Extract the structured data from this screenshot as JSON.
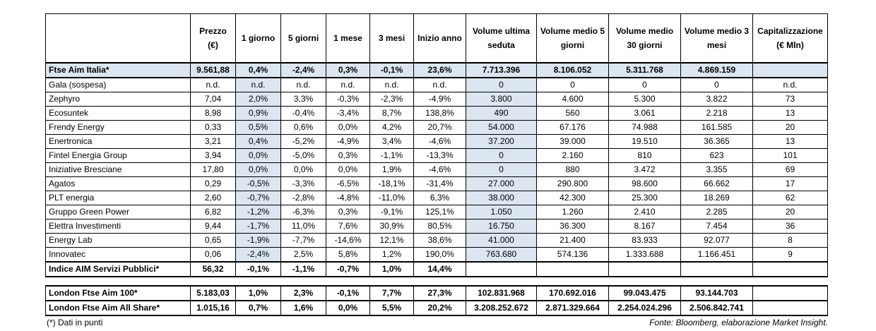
{
  "header": [
    "",
    "Prezzo (€)",
    "1 giorno",
    "5 giorni",
    "1 mese",
    "3 mesi",
    "Inizio anno",
    "Volume ultima seduta",
    "Volume medio 5 giorni",
    "Volume medio 30 giorni",
    "Volume medio 3 mesi",
    "Capitalizzazione (€ Mln)"
  ],
  "index_row": [
    "Ftse Aim Italia*",
    "9.561,88",
    "0,4%",
    "-2,4%",
    "0,3%",
    "-0,1%",
    "23,6%",
    "7.713.396",
    "8.106.052",
    "5.311.768",
    "4.869.159",
    ""
  ],
  "rows": [
    [
      "Gala (sospesa)",
      "n.d.",
      "n.d.",
      "n.d.",
      "n.d.",
      "n.d.",
      "n.d.",
      "0",
      "0",
      "0",
      "0",
      "n.d."
    ],
    [
      "Zephyro",
      "7,04",
      "2,0%",
      "3,3%",
      "-0,3%",
      "-2,3%",
      "-4,9%",
      "3.800",
      "4.600",
      "5.300",
      "3.822",
      "73"
    ],
    [
      "Ecosuntek",
      "8,98",
      "0,9%",
      "-0,4%",
      "-3,4%",
      "8,7%",
      "138,8%",
      "490",
      "560",
      "3.061",
      "2.218",
      "13"
    ],
    [
      "Frendy Energy",
      "0,33",
      "0,5%",
      "0,6%",
      "0,0%",
      "4,2%",
      "20,7%",
      "54.000",
      "67.176",
      "74.988",
      "161.585",
      "20"
    ],
    [
      "Enertronica",
      "3,21",
      "0,4%",
      "-5,2%",
      "-4,9%",
      "3,4%",
      "-4,6%",
      "37.200",
      "39.000",
      "19.510",
      "36.365",
      "13"
    ],
    [
      "Fintel Energia Group",
      "3,94",
      "0,0%",
      "-5,0%",
      "0,3%",
      "-1,1%",
      "-13,3%",
      "0",
      "2.160",
      "810",
      "623",
      "101"
    ],
    [
      "Iniziative Bresciane",
      "17,80",
      "0,0%",
      "0,0%",
      "0,0%",
      "1,9%",
      "-4,6%",
      "0",
      "880",
      "3.472",
      "3.355",
      "69"
    ],
    [
      "Agatos",
      "0,29",
      "-0,5%",
      "-3,3%",
      "-6,5%",
      "-18,1%",
      "-31,4%",
      "27.000",
      "290.800",
      "98.600",
      "66.662",
      "17"
    ],
    [
      "PLT energia",
      "2,60",
      "-0,7%",
      "-2,8%",
      "-4,8%",
      "-11,0%",
      "6,3%",
      "38.000",
      "42.300",
      "25.300",
      "18.269",
      "62"
    ],
    [
      "Gruppo Green Power",
      "6,82",
      "-1,2%",
      "-6,3%",
      "0,3%",
      "-9,1%",
      "125,1%",
      "1.050",
      "1.260",
      "2.410",
      "2.285",
      "20"
    ],
    [
      "Elettra Investimenti",
      "9,44",
      "-1,7%",
      "11,0%",
      "7,6%",
      "30,9%",
      "80,5%",
      "16.750",
      "36.300",
      "8.167",
      "7.454",
      "36"
    ],
    [
      "Energy Lab",
      "0,65",
      "-1,9%",
      "-7,7%",
      "-14,6%",
      "12,1%",
      "38,6%",
      "41.000",
      "21.400",
      "83.933",
      "92.077",
      "8"
    ],
    [
      "Innovatec",
      "0,06",
      "-2,4%",
      "2,5%",
      "5,8%",
      "1,2%",
      "190,0%",
      "763.680",
      "574.136",
      "1.333.688",
      "1.166.451",
      "9"
    ]
  ],
  "sector_row": [
    "Indice AIM Servizi Pubblici*",
    "56,32",
    "-0,1%",
    "-1,1%",
    "-0,7%",
    "1,0%",
    "14,4%",
    "",
    "",
    "",
    "",
    ""
  ],
  "london_rows": [
    [
      "London Ftse Aim 100*",
      "5.183,03",
      "1,0%",
      "2,3%",
      "-0,1%",
      "7,7%",
      "27,3%",
      "102.831.968",
      "170.692.016",
      "99.043.475",
      "93.144.703",
      ""
    ],
    [
      "London Ftse Aim All Share*",
      "1.015,16",
      "0,7%",
      "1,6%",
      "0,0%",
      "5,5%",
      "20,2%",
      "3.208.252.672",
      "2.871.329.664",
      "2.254.024.296",
      "2.506.842.741",
      ""
    ]
  ],
  "note_left": "(*) Dati in punti",
  "note_right": "Fonte: Bloomberg, elaborazione Market Insight."
}
